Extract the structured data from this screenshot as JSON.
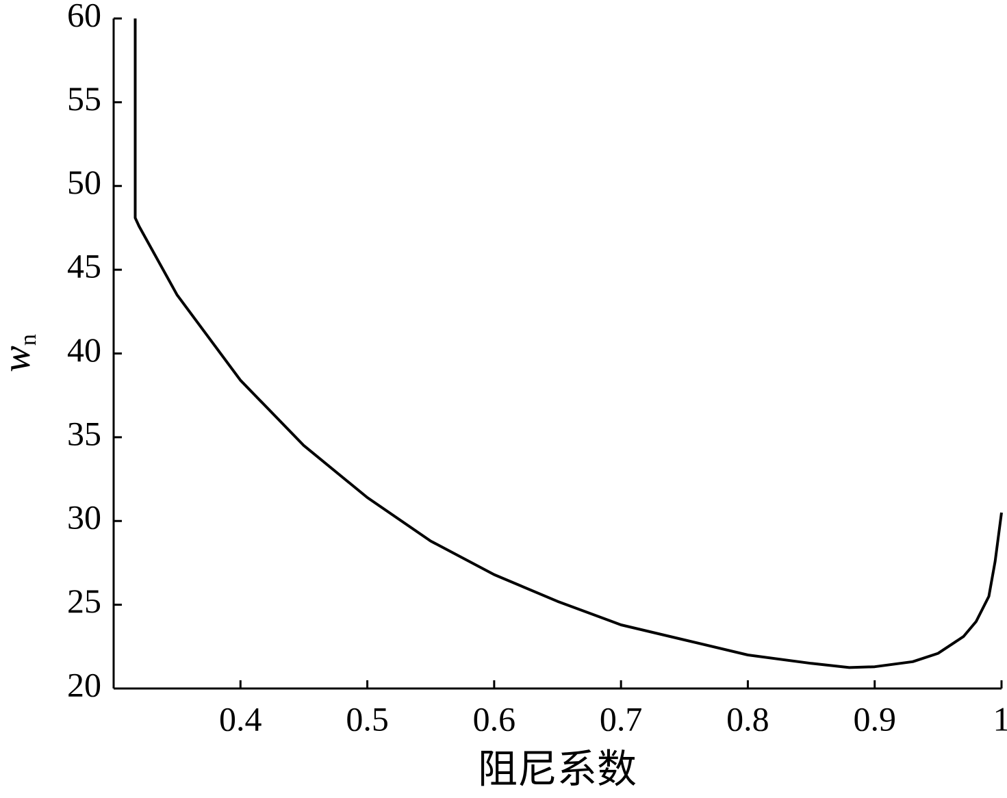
{
  "chart_data": {
    "type": "line",
    "x_label": "阻尼系数",
    "y_label": "w",
    "y_label_subscript": "n",
    "x": [
      0.317,
      0.317,
      0.32,
      0.35,
      0.4,
      0.45,
      0.5,
      0.55,
      0.6,
      0.65,
      0.7,
      0.75,
      0.8,
      0.85,
      0.88,
      0.9,
      0.93,
      0.95,
      0.97,
      0.98,
      0.99,
      0.995,
      1.0
    ],
    "values": [
      60,
      48.1,
      47.6,
      43.5,
      38.4,
      34.5,
      31.4,
      28.8,
      26.8,
      25.2,
      23.8,
      22.9,
      22.0,
      21.5,
      21.25,
      21.3,
      21.6,
      22.1,
      23.1,
      24.0,
      25.5,
      27.6,
      30.5
    ],
    "color": "#000000",
    "xlim": [
      0.3,
      1
    ],
    "ylim": [
      20,
      60
    ],
    "xticks": [
      0.4,
      0.5,
      0.6,
      0.7,
      0.8,
      0.9,
      1
    ],
    "yticks": [
      20,
      25,
      30,
      35,
      40,
      45,
      50,
      55,
      60
    ],
    "grid": false
  }
}
